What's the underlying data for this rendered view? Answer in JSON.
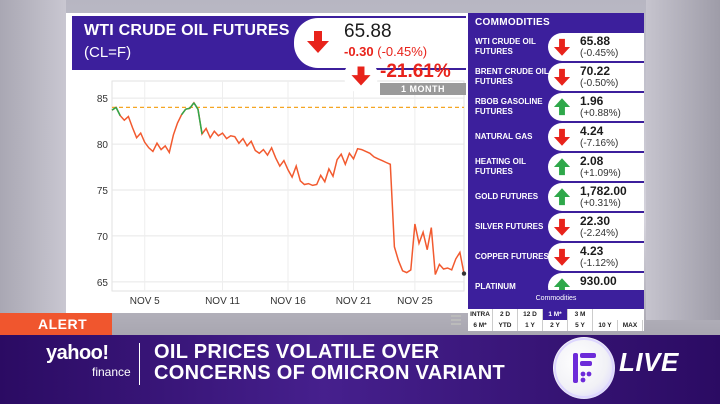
{
  "header": {
    "title": "WTI CRUDE OIL FUTURES",
    "symbol": "(CL=F)",
    "price": "65.88",
    "change": "-0.30",
    "change_pct": "(-0.45%)",
    "performance": "-21.61%",
    "performance_period": "1 MONTH",
    "down_color": "#e8231b",
    "up_color": "#2ea84a"
  },
  "chart_data": {
    "type": "line",
    "x_tick_labels": [
      "NOV 5",
      "NOV 11",
      "NOV 16",
      "NOV 21",
      "NOV 25"
    ],
    "y_tick_labels": [
      "85",
      "80",
      "75",
      "70",
      "65"
    ],
    "ylim": [
      64,
      86
    ],
    "reference_line": 84.0,
    "x": [
      0,
      1,
      2,
      3,
      4,
      5,
      6,
      7,
      8,
      9,
      10,
      11,
      12,
      13,
      14,
      15,
      16,
      17,
      18,
      19,
      20,
      21,
      22,
      23,
      24,
      25,
      26,
      27,
      28,
      29,
      30,
      31,
      32,
      33,
      34,
      35,
      36,
      37,
      38,
      39,
      40,
      41,
      42,
      43,
      44,
      45,
      46,
      47,
      48,
      49,
      50,
      51,
      52,
      53,
      54,
      55,
      56,
      57,
      58,
      59,
      60,
      61,
      62,
      63,
      64,
      65,
      66,
      67,
      68,
      69,
      70,
      71,
      72,
      73,
      74,
      75,
      76,
      77,
      78,
      79,
      80,
      81,
      82,
      83,
      84,
      85,
      86
    ],
    "values": [
      83.7,
      84.0,
      83.1,
      82.6,
      83.0,
      81.8,
      80.7,
      81.2,
      80.2,
      79.6,
      79.2,
      80.1,
      79.4,
      79.8,
      79.1,
      81.0,
      82.3,
      83.2,
      83.8,
      83.9,
      84.5,
      83.8,
      81.1,
      81.7,
      80.7,
      81.4,
      80.9,
      81.2,
      80.6,
      80.9,
      80.8,
      80.1,
      80.6,
      79.8,
      80.3,
      79.3,
      79.0,
      79.4,
      78.8,
      79.6,
      78.5,
      77.6,
      78.2,
      77.2,
      76.4,
      77.6,
      76.0,
      75.6,
      75.7,
      75.5,
      75.6,
      76.6,
      75.9,
      77.3,
      76.5,
      78.3,
      78.9,
      77.8,
      79.0,
      78.4,
      79.5,
      79.4,
      79.2,
      79.0,
      78.6,
      78.4,
      78.2,
      78.0,
      77.8,
      68.8,
      67.3,
      66.2,
      66.0,
      66.3,
      71.3,
      69.2,
      70.4,
      68.5,
      70.9,
      65.8,
      66.9,
      66.4,
      66.5,
      66.3,
      67.5,
      68.2,
      65.9
    ],
    "line_color": "#f25a2f",
    "reference_color": "#f5a623",
    "grid": true
  },
  "sidebar": {
    "title": "COMMODITIES",
    "items": [
      {
        "name": "WTI CRUDE OIL FUTURES",
        "price": "65.88",
        "change": "(-0.45%)",
        "dir": "down"
      },
      {
        "name": "BRENT CRUDE OIL FUTURES",
        "price": "70.22",
        "change": "(-0.50%)",
        "dir": "down"
      },
      {
        "name": "RBOB GASOLINE FUTURES",
        "price": "1.96",
        "change": "(+0.88%)",
        "dir": "up"
      },
      {
        "name": "NATURAL GAS",
        "price": "4.24",
        "change": "(-7.16%)",
        "dir": "down"
      },
      {
        "name": "HEATING OIL FUTURES",
        "price": "2.08",
        "change": "(+1.09%)",
        "dir": "up"
      },
      {
        "name": "GOLD FUTURES",
        "price": "1,782.00",
        "change": "(+0.31%)",
        "dir": "up"
      },
      {
        "name": "SILVER FUTURES",
        "price": "22.30",
        "change": "(-2.24%)",
        "dir": "down"
      },
      {
        "name": "COPPER FUTURES",
        "price": "4.23",
        "change": "(-1.12%)",
        "dir": "down"
      },
      {
        "name": "PLATINUM",
        "price": "930.00",
        "change": "",
        "dir": "up"
      }
    ],
    "footer": "Commodities"
  },
  "ranges": {
    "row1": [
      "INTRA",
      "2 D",
      "12 D",
      "1 M*",
      "3 M"
    ],
    "row2": [
      "6 M*",
      "YTD",
      "1 Y",
      "2 Y",
      "5 Y",
      "10 Y",
      "MAX"
    ],
    "active": "1 M*"
  },
  "ticker": {
    "alert_label": "ALERT",
    "brand": "yahoo!",
    "brand_sub": "finance",
    "headline_line1": "OIL PRICES VOLATILE OVER",
    "headline_line2": "CONCERNS OF OMICRON VARIANT",
    "live_label": "LIVE"
  }
}
